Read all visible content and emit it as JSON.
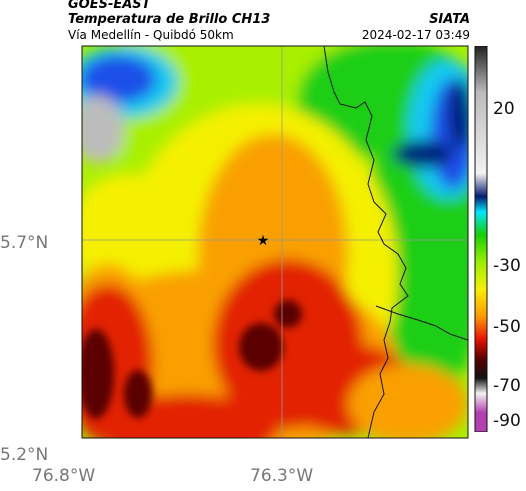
{
  "header": {
    "satellite": "GOES-EAST",
    "product": "Temperatura de Brillo CH13",
    "route": "Vía Medellín - Quibdó 50km",
    "organization": "SIATA",
    "timestamp": "2024-02-17 03:49"
  },
  "axes": {
    "lat_labels": [
      "5.7°N",
      "5.2°N"
    ],
    "lon_labels": [
      "76.8°W",
      "76.3°W"
    ]
  },
  "colorbar": {
    "labels": [
      "20",
      "-30",
      "-50",
      "-70",
      "-90"
    ],
    "colors": {
      "top": "#222222",
      "gray": "#bbbbbb",
      "light": "#f2f2f2",
      "blue_dark": "#001d72",
      "blue": "#1e63ff",
      "cyan": "#00e5ff",
      "green": "#16d000",
      "lime": "#9af000",
      "yellow": "#f7ef00",
      "orange": "#ff9b00",
      "red": "#e81200",
      "maroon": "#5a0000",
      "black": "#111111",
      "magenta": "#b43fb0"
    }
  },
  "map": {
    "marker_icon": "star-icon",
    "colors": {
      "gray": "#bcbcbc",
      "blue_dark": "#00227a",
      "blue": "#1c4fe8",
      "cyan": "#15c9f0",
      "green": "#1fcf17",
      "lime": "#a9f000",
      "yellow": "#f4f000",
      "orange": "#f9a000",
      "red": "#e22000",
      "maroon": "#5a0500"
    }
  }
}
